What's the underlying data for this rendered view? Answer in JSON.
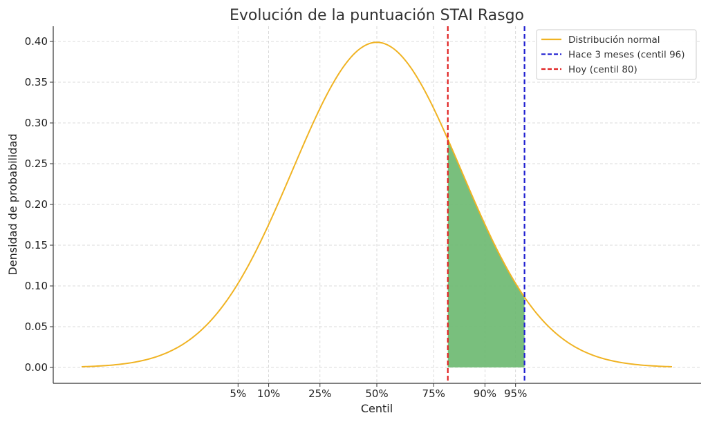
{
  "chart_data": {
    "type": "line",
    "title": "Evolución de la puntuación STAI Rasgo",
    "xlabel": "Centil",
    "ylabel": "Densidad de probabilidad",
    "x_range": [
      -3.5,
      3.5
    ],
    "ylim": [
      0,
      0.42
    ],
    "yticks": [
      0.0,
      0.05,
      0.1,
      0.15,
      0.2,
      0.25,
      0.3,
      0.35,
      0.4
    ],
    "xticks": [
      {
        "z": -1.645,
        "label": "5%"
      },
      {
        "z": -1.282,
        "label": "10%"
      },
      {
        "z": -0.674,
        "label": "25%"
      },
      {
        "z": 0.0,
        "label": "50%"
      },
      {
        "z": 0.674,
        "label": "75%"
      },
      {
        "z": 1.282,
        "label": "90%"
      },
      {
        "z": 1.645,
        "label": "95%"
      }
    ],
    "grid": true,
    "series": [
      {
        "name": "Distribución normal",
        "kind": "normal-pdf",
        "mean": 0,
        "sd": 1,
        "color": "#f0b323"
      }
    ],
    "vlines": [
      {
        "name": "Hace 3 meses (centil 96)",
        "z": 1.751,
        "color": "#1f1fd0"
      },
      {
        "name": "Hoy (centil 80)",
        "z": 0.842,
        "color": "#e02020"
      }
    ],
    "shaded_region": {
      "from_z": 0.842,
      "to_z": 1.751,
      "color": "#6ab86f"
    },
    "legend_position": "top-right"
  }
}
